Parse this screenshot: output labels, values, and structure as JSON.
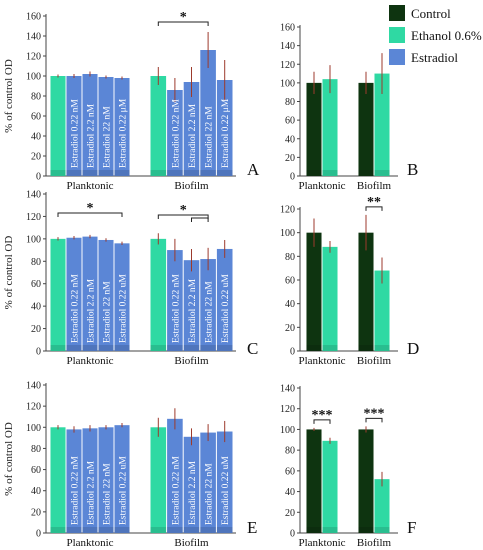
{
  "colors": {
    "control": "#0e3410",
    "ethanol": "#2fd9a3",
    "estradiol": "#5b86d6",
    "error": "#9c3a2c"
  },
  "legend": {
    "items": [
      {
        "key": "control",
        "label": "Control"
      },
      {
        "key": "ethanol",
        "label": "Ethanol 0.6%"
      },
      {
        "key": "estradiol",
        "label": "Estradiol"
      }
    ]
  },
  "ylabel": "% of control OD",
  "chart_data": [
    {
      "panel": "A",
      "type": "bar",
      "ylim": [
        0,
        160
      ],
      "yticks": [
        0,
        20,
        40,
        60,
        80,
        100,
        120,
        140,
        160
      ],
      "groups": [
        {
          "label": "Planktonic",
          "bars": [
            {
              "series": "ethanol",
              "value": 100,
              "err": 1.5
            },
            {
              "series": "estradiol",
              "value": 100,
              "err": 2,
              "label": "Estradiol 0.22 nM"
            },
            {
              "series": "estradiol",
              "value": 102,
              "err": 2.5,
              "label": "Estradiol 2.2 nM"
            },
            {
              "series": "estradiol",
              "value": 99,
              "err": 1.5,
              "label": "Estradiol 22 nM"
            },
            {
              "series": "estradiol",
              "value": 98,
              "err": 1.5,
              "label": "Estradiol 0.22 μM"
            }
          ]
        },
        {
          "label": "Biofilm",
          "bars": [
            {
              "series": "ethanol",
              "value": 100,
              "err": 9
            },
            {
              "series": "estradiol",
              "value": 86,
              "err": 12,
              "label": "Estradiol 0.22 nM"
            },
            {
              "series": "estradiol",
              "value": 94,
              "err": 15,
              "label": "Estradiol 2.2 nM"
            },
            {
              "series": "estradiol",
              "value": 126,
              "err": 18,
              "label": "Estradiol 22 nM"
            },
            {
              "series": "estradiol",
              "value": 96,
              "err": 20,
              "label": "Estradiol 0.22 μM"
            }
          ]
        }
      ],
      "significance": [
        {
          "label": "*",
          "group": 1,
          "from": 0,
          "to": 3
        }
      ]
    },
    {
      "panel": "B",
      "type": "bar",
      "ylim": [
        0,
        160
      ],
      "yticks": [
        0,
        20,
        40,
        60,
        80,
        100,
        120,
        140,
        160
      ],
      "groups": [
        {
          "label": "Planktonic",
          "bars": [
            {
              "series": "control",
              "value": 100,
              "err": 12
            },
            {
              "series": "ethanol",
              "value": 104,
              "err": 15
            }
          ]
        },
        {
          "label": "Biofilm",
          "bars": [
            {
              "series": "control",
              "value": 100,
              "err": 12
            },
            {
              "series": "ethanol",
              "value": 110,
              "err": 22
            }
          ]
        }
      ],
      "significance": []
    },
    {
      "panel": "C",
      "type": "bar",
      "ylim": [
        0,
        140
      ],
      "yticks": [
        0,
        20,
        40,
        60,
        80,
        100,
        120,
        140
      ],
      "groups": [
        {
          "label": "Planktonic",
          "bars": [
            {
              "series": "ethanol",
              "value": 100,
              "err": 1.5
            },
            {
              "series": "estradiol",
              "value": 101,
              "err": 1.5,
              "label": "Estradiol 0.22 nM"
            },
            {
              "series": "estradiol",
              "value": 102,
              "err": 1.5,
              "label": "Estradiol 2.2 nM"
            },
            {
              "series": "estradiol",
              "value": 99,
              "err": 1.5,
              "label": "Estradiol 22 nM"
            },
            {
              "series": "estradiol",
              "value": 96,
              "err": 1.5,
              "label": "Estradiol 0.22 uM"
            }
          ]
        },
        {
          "label": "Biofilm",
          "bars": [
            {
              "series": "ethanol",
              "value": 100,
              "err": 5
            },
            {
              "series": "estradiol",
              "value": 90,
              "err": 10,
              "label": "Estradiol 0.22 nM"
            },
            {
              "series": "estradiol",
              "value": 81,
              "err": 10,
              "label": "Estradiol 2.2 nM"
            },
            {
              "series": "estradiol",
              "value": 82,
              "err": 10,
              "label": "Estradiol 22 nM"
            },
            {
              "series": "estradiol",
              "value": 91,
              "err": 8,
              "label": "Estradiol 0.22 uM"
            }
          ]
        }
      ],
      "significance": [
        {
          "label": "*",
          "group": 0,
          "from": 0,
          "to": 4
        },
        {
          "label": "*",
          "group": 1,
          "from": 0,
          "to": 3
        },
        {
          "label": "",
          "group": 1,
          "from": 2,
          "to": 3
        }
      ]
    },
    {
      "panel": "D",
      "type": "bar",
      "ylim": [
        0,
        120
      ],
      "yticks": [
        0,
        20,
        40,
        60,
        80,
        100,
        120
      ],
      "groups": [
        {
          "label": "Planktonic",
          "bars": [
            {
              "series": "control",
              "value": 100,
              "err": 12
            },
            {
              "series": "ethanol",
              "value": 88,
              "err": 5
            }
          ]
        },
        {
          "label": "Biofilm",
          "bars": [
            {
              "series": "control",
              "value": 100,
              "err": 15
            },
            {
              "series": "ethanol",
              "value": 68,
              "err": 11
            }
          ]
        }
      ],
      "significance": [
        {
          "label": "**",
          "group": 1,
          "from": 0,
          "to": 1
        }
      ]
    },
    {
      "panel": "E",
      "type": "bar",
      "ylim": [
        0,
        140
      ],
      "yticks": [
        0,
        20,
        40,
        60,
        80,
        100,
        120,
        140
      ],
      "groups": [
        {
          "label": "Planktonic",
          "bars": [
            {
              "series": "ethanol",
              "value": 100,
              "err": 2
            },
            {
              "series": "estradiol",
              "value": 98,
              "err": 3,
              "label": "Estradiol 0.22 nM"
            },
            {
              "series": "estradiol",
              "value": 99,
              "err": 3,
              "label": "Estradiol 2.2 nM"
            },
            {
              "series": "estradiol",
              "value": 100,
              "err": 2,
              "label": "Estradiol 22 nM"
            },
            {
              "series": "estradiol",
              "value": 102,
              "err": 2,
              "label": "Estradiol 0.22 uM"
            }
          ]
        },
        {
          "label": "Biofilm",
          "bars": [
            {
              "series": "ethanol",
              "value": 100,
              "err": 9
            },
            {
              "series": "estradiol",
              "value": 108,
              "err": 10,
              "label": "Estradiol 0.22 nM"
            },
            {
              "series": "estradiol",
              "value": 91,
              "err": 8,
              "label": "Estradiol 2.2 nM"
            },
            {
              "series": "estradiol",
              "value": 95,
              "err": 8,
              "label": "Estradiol 22 nM"
            },
            {
              "series": "estradiol",
              "value": 96,
              "err": 10,
              "label": "Estradiol 0.22 uM"
            }
          ]
        }
      ],
      "significance": []
    },
    {
      "panel": "F",
      "type": "bar",
      "ylim": [
        0,
        140
      ],
      "yticks": [
        0,
        20,
        40,
        60,
        80,
        100,
        120,
        140
      ],
      "groups": [
        {
          "label": "Planktonic",
          "bars": [
            {
              "series": "control",
              "value": 100,
              "err": 1.5
            },
            {
              "series": "ethanol",
              "value": 89,
              "err": 3
            }
          ]
        },
        {
          "label": "Biofilm",
          "bars": [
            {
              "series": "control",
              "value": 100,
              "err": 3
            },
            {
              "series": "ethanol",
              "value": 52,
              "err": 7
            }
          ]
        }
      ],
      "significance": [
        {
          "label": "***",
          "group": 0,
          "from": 0,
          "to": 1
        },
        {
          "label": "***",
          "group": 1,
          "from": 0,
          "to": 1
        }
      ]
    }
  ]
}
